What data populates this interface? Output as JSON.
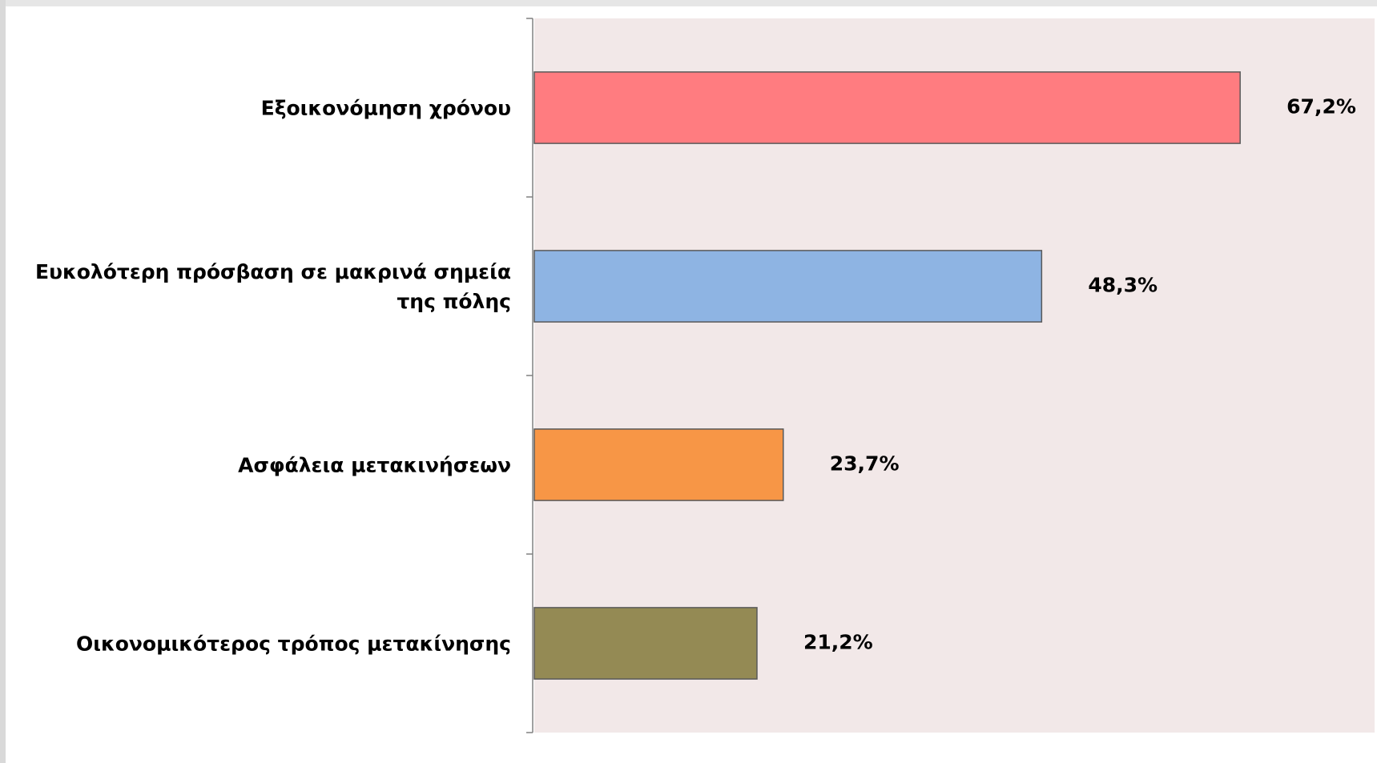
{
  "chart_data": {
    "type": "barh",
    "categories": [
      "Εξοικονόμηση χρόνου",
      "Ευκολότερη πρόσβαση σε μακρινά σημεία της πόλης",
      "Ασφάλεια μετακινήσεων",
      "Οικονομικότερος τρόπος μετακίνησης"
    ],
    "values": [
      67.2,
      48.3,
      23.7,
      21.2
    ],
    "value_labels": [
      "67,2%",
      "48,3%",
      "23,7%",
      "21,2%"
    ],
    "colors": [
      "#ff7c80",
      "#8eb4e3",
      "#f79646",
      "#948a54"
    ],
    "xlim": [
      0,
      80
    ],
    "plot_background": "#f2e8e8"
  }
}
